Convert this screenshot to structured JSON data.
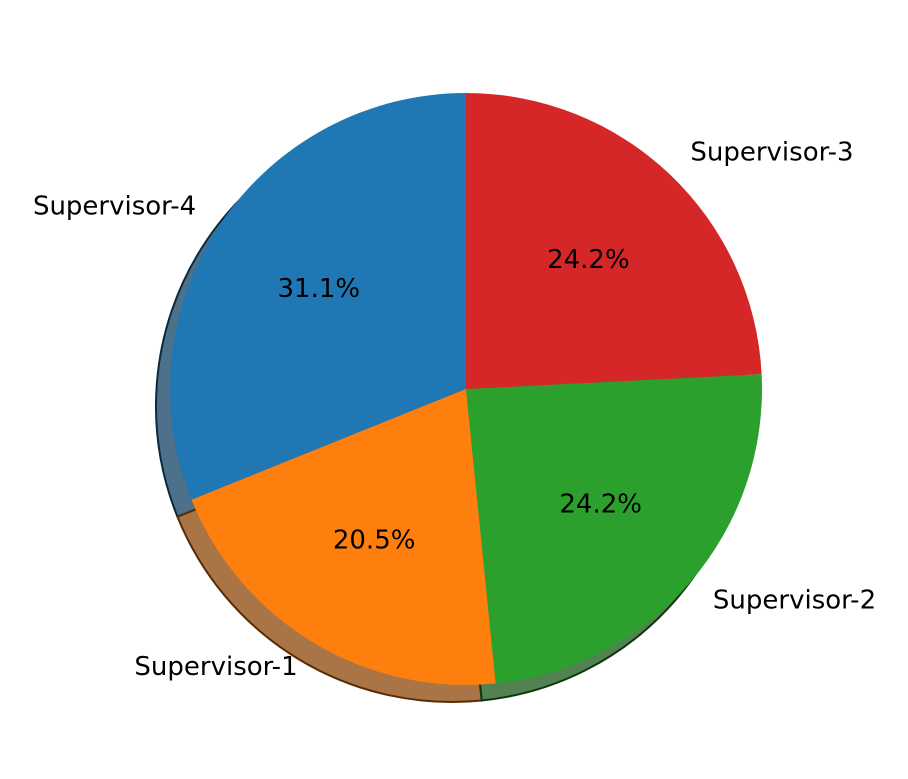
{
  "chart_data": {
    "type": "pie",
    "title": "",
    "start_angle_deg": 90,
    "direction": "counterclockwise",
    "shadow": true,
    "slices": [
      {
        "label": "Supervisor-4",
        "value": 31.1,
        "percent_label": "31.1%",
        "color": "#1f77b4"
      },
      {
        "label": "Supervisor-1",
        "value": 20.5,
        "percent_label": "20.5%",
        "color": "#ff7f0e"
      },
      {
        "label": "Supervisor-2",
        "value": 24.2,
        "percent_label": "24.2%",
        "color": "#2ca02c"
      },
      {
        "label": "Supervisor-3",
        "value": 24.2,
        "percent_label": "24.2%",
        "color": "#d62728"
      }
    ]
  }
}
